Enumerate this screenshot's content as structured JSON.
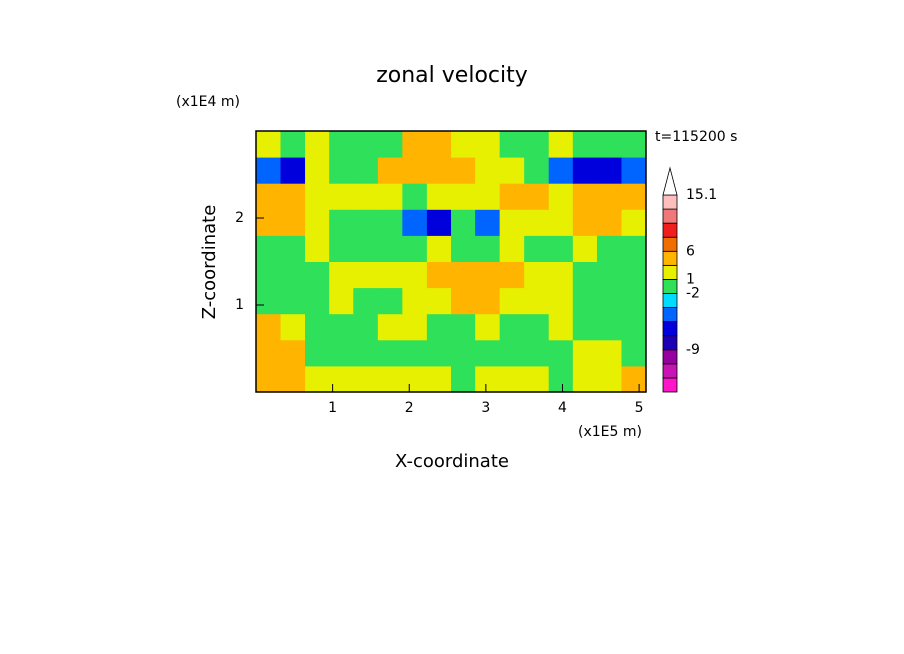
{
  "chart_data": {
    "type": "contour",
    "title": "zonal velocity",
    "x_label": "X-coordinate",
    "y_label": "Z-coordinate",
    "x_unit": "(x1E5 m)",
    "y_unit": "(x1E4 m)",
    "time_label": "t=115200 s",
    "xlim": [
      0,
      5.09
    ],
    "ylim": [
      0,
      3
    ],
    "xticks": [
      1,
      2,
      3,
      4,
      5
    ],
    "yticks": [
      1,
      2
    ],
    "x": [
      0.16,
      0.48,
      0.8,
      1.11,
      1.43,
      1.75,
      2.07,
      2.39,
      2.7,
      3.02,
      3.34,
      3.66,
      3.98,
      4.29,
      4.61,
      4.93
    ],
    "y": [
      0.15,
      0.45,
      0.75,
      1.05,
      1.35,
      1.65,
      1.95,
      2.25,
      2.55,
      2.85
    ],
    "z": [
      [
        4,
        3,
        1.5,
        1.5,
        1.5,
        1.5,
        1.5,
        1.5,
        0,
        1.5,
        1.5,
        1.5,
        0,
        1.5,
        1.5,
        3
      ],
      [
        3,
        4,
        0,
        0,
        0,
        0,
        -1.5,
        -1.5,
        0,
        -1.5,
        -1.5,
        0,
        0,
        1.5,
        1.5,
        0
      ],
      [
        3,
        1.5,
        0,
        0,
        0,
        1.5,
        1.5,
        0,
        0,
        1.5,
        0,
        0,
        1.5,
        0,
        0,
        0
      ],
      [
        -1.5,
        0,
        0,
        1.5,
        0,
        0,
        1.5,
        1.5,
        3,
        3,
        1.5,
        1.5,
        1.5,
        -1.5,
        -1.5,
        0
      ],
      [
        -1.5,
        -1.5,
        0,
        1.5,
        1.5,
        1.5,
        1.5,
        4,
        5,
        4,
        3,
        1.5,
        1.5,
        0,
        -1.5,
        0
      ],
      [
        0,
        0,
        1.5,
        0,
        0,
        0,
        0,
        1.5,
        0,
        0,
        1.5,
        0,
        0,
        1.5,
        0,
        0
      ],
      [
        5,
        4,
        1.5,
        0,
        0,
        -1,
        -4,
        -6,
        -1.5,
        -4,
        1.5,
        1.5,
        1.5,
        3,
        4,
        1.5
      ],
      [
        4,
        3,
        1.5,
        1.5,
        1.5,
        1.5,
        0,
        1.5,
        1.5,
        1.5,
        3,
        3,
        1.5,
        3,
        4,
        3
      ],
      [
        -4,
        -6,
        1.5,
        0,
        0,
        4,
        4,
        5,
        5,
        2,
        1.5,
        0,
        -4,
        -6,
        -6,
        -4
      ],
      [
        1.5,
        0,
        1.5,
        0,
        -1,
        0,
        3,
        4,
        2,
        1.5,
        0,
        0,
        1.5,
        0,
        0,
        0
      ]
    ],
    "levels": [
      -15,
      -12,
      -9,
      -7,
      -5,
      -3,
      -2,
      1,
      3,
      6,
      9,
      11,
      13,
      15.1
    ],
    "colors": [
      "#ff14c8",
      "#c814b4",
      "#9600a0",
      "#1e00b4",
      "#0000dc",
      "#0064ff",
      "#00dcff",
      "#2ee05a",
      "#e6f000",
      "#ffb400",
      "#f06e00",
      "#f01e1e",
      "#f07878",
      "#ffbebe",
      "#ffffff"
    ],
    "colorbar_ticks": [
      -9,
      -2,
      1,
      6,
      15.1
    ]
  }
}
